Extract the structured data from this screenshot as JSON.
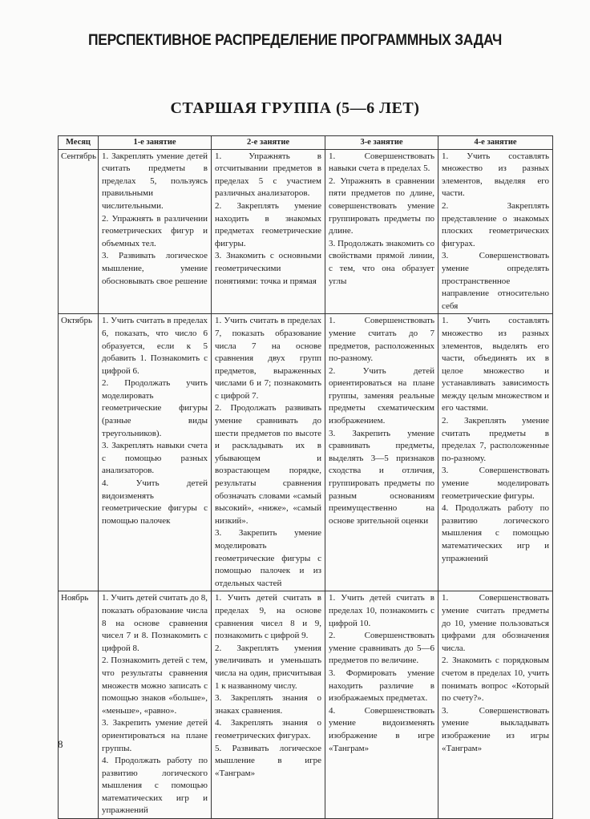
{
  "page_title": "ПЕРСПЕКТИВНОЕ РАСПРЕДЕЛЕНИЕ ПРОГРАММНЫХ ЗАДАЧ",
  "section_title": "СТАРШАЯ ГРУППА (5—6 ЛЕТ)",
  "table": {
    "headers": [
      "Месяц",
      "1-е занятие",
      "2-е занятие",
      "3-е занятие",
      "4-е занятие"
    ],
    "rows": [
      {
        "month": "Сентябрь",
        "cells": [
          [
            "1. Закреплять умение детей считать предметы в пределах 5, пользуясь правильными числительными.",
            "2. Упражнять в различении геометрических фигур и объемных тел.",
            "3. Развивать логическое мышление, умение обосновывать свое решение"
          ],
          [
            "1. Упражнять в отсчитывании предметов в пределах 5 с участием различных анализаторов.",
            "2. Закреплять умение находить в знакомых предметах геометрические фигуры.",
            "3. Знакомить с основными геометрическими понятиями: точка и прямая"
          ],
          [
            "1. Совершенствовать навыки счета в пределах 5.",
            "2. Упражнять в сравнении пяти предметов по длине, совершенствовать умение группировать предметы по длине.",
            "3. Продолжать знакомить со свойствами прямой линии, с тем, что она образует углы"
          ],
          [
            "1. Учить составлять множество из разных элементов, выделяя его части.",
            "2. Закреплять представление о знакомых плоских геометрических фигурах.",
            "3. Совершенствовать умение определять пространственное направление относительно себя"
          ]
        ]
      },
      {
        "month": "Октябрь",
        "cells": [
          [
            "1. Учить считать в пределах 6, показать, что число 6 образуется, если к 5 добавить 1. Познакомить с цифрой 6.",
            "2. Продолжать учить моделировать геометрические фигуры (разные виды треугольников).",
            "3. Закреплять навыки счета с помощью разных анализаторов.",
            "4. Учить детей видоизменять геометрические фигуры с помощью палочек"
          ],
          [
            "1. Учить считать в пределах 7, показать образование числа 7 на основе сравнения двух групп предметов, выраженных числами 6 и 7; познакомить с цифрой 7.",
            "2. Продолжать развивать умение сравнивать до шести предметов по высоте и раскладывать их в убывающем и возрастающем порядке, результаты сравнения обозначать словами «самый высокий», «ниже», «самый низкий».",
            "3. Закрепить умение моделировать геометрические фигуры с помощью палочек и из отдельных частей"
          ],
          [
            "1. Совершенствовать умение считать до 7 предметов, расположенных по-разному.",
            "2. Учить детей ориентироваться на плане группы, заменяя реальные предметы схематическим изображением.",
            "3. Закрепить умение сравнивать предметы, выделять 3—5 признаков сходства и отличия, группировать предметы по разным основаниям преимущественно на основе зрительной оценки"
          ],
          [
            "1. Учить составлять множество из разных элементов, выделять его части, объединять их в целое множество и устанавливать зависимость между целым множеством и его частями.",
            "2. Закреплять умение считать предметы в пределах 7, расположенные по-разному.",
            "3. Совершенствовать умение моделировать геометрические фигуры.",
            "4. Продолжать работу по развитию логического мышления с помощью математических игр и упражнений"
          ]
        ]
      },
      {
        "month": "Ноябрь",
        "cells": [
          [
            "1. Учить детей считать до 8, показать образование числа 8 на основе сравнения чисел 7 и 8. Познакомить с цифрой 8.",
            "2. Познакомить детей с тем, что результаты сравнения множеств можно записать с помощью знаков «больше», «меньше», «равно».",
            "3. Закрепить умение детей ориентироваться на плане группы.",
            "4. Продолжать работу по развитию логического мышления с помощью математических игр и упражнений"
          ],
          [
            "1. Учить детей считать в пределах 9, на основе сравнения чисел 8 и 9, познакомить с цифрой 9.",
            "2. Закреплять умения увеличивать и уменьшать числа на один, присчитывая 1 к названному числу.",
            "3. Закреплять знания о знаках сравнения.",
            "4. Закреплять знания о геометрических фигурах.",
            "5. Развивать логическое мышление в игре «Танграм»"
          ],
          [
            "1. Учить детей считать в пределах 10, познакомить с цифрой 10.",
            "2. Совершенствовать умение сравнивать до 5—6 предметов по величине.",
            "3. Формировать умение находить различие в изображаемых предметах.",
            "4. Совершенствовать умение видоизменять изображение в игре «Танграм»"
          ],
          [
            "1. Совершенствовать умение считать предметы до 10, умение пользоваться цифрами для обозначения числа.",
            "2. Знакомить с порядковым счетом в пределах 10, учить понимать вопрос «Который по счету?».",
            "3. Совершенствовать умение выкладывать изображение из игры «Танграм»"
          ]
        ]
      }
    ]
  },
  "page_number": "8"
}
